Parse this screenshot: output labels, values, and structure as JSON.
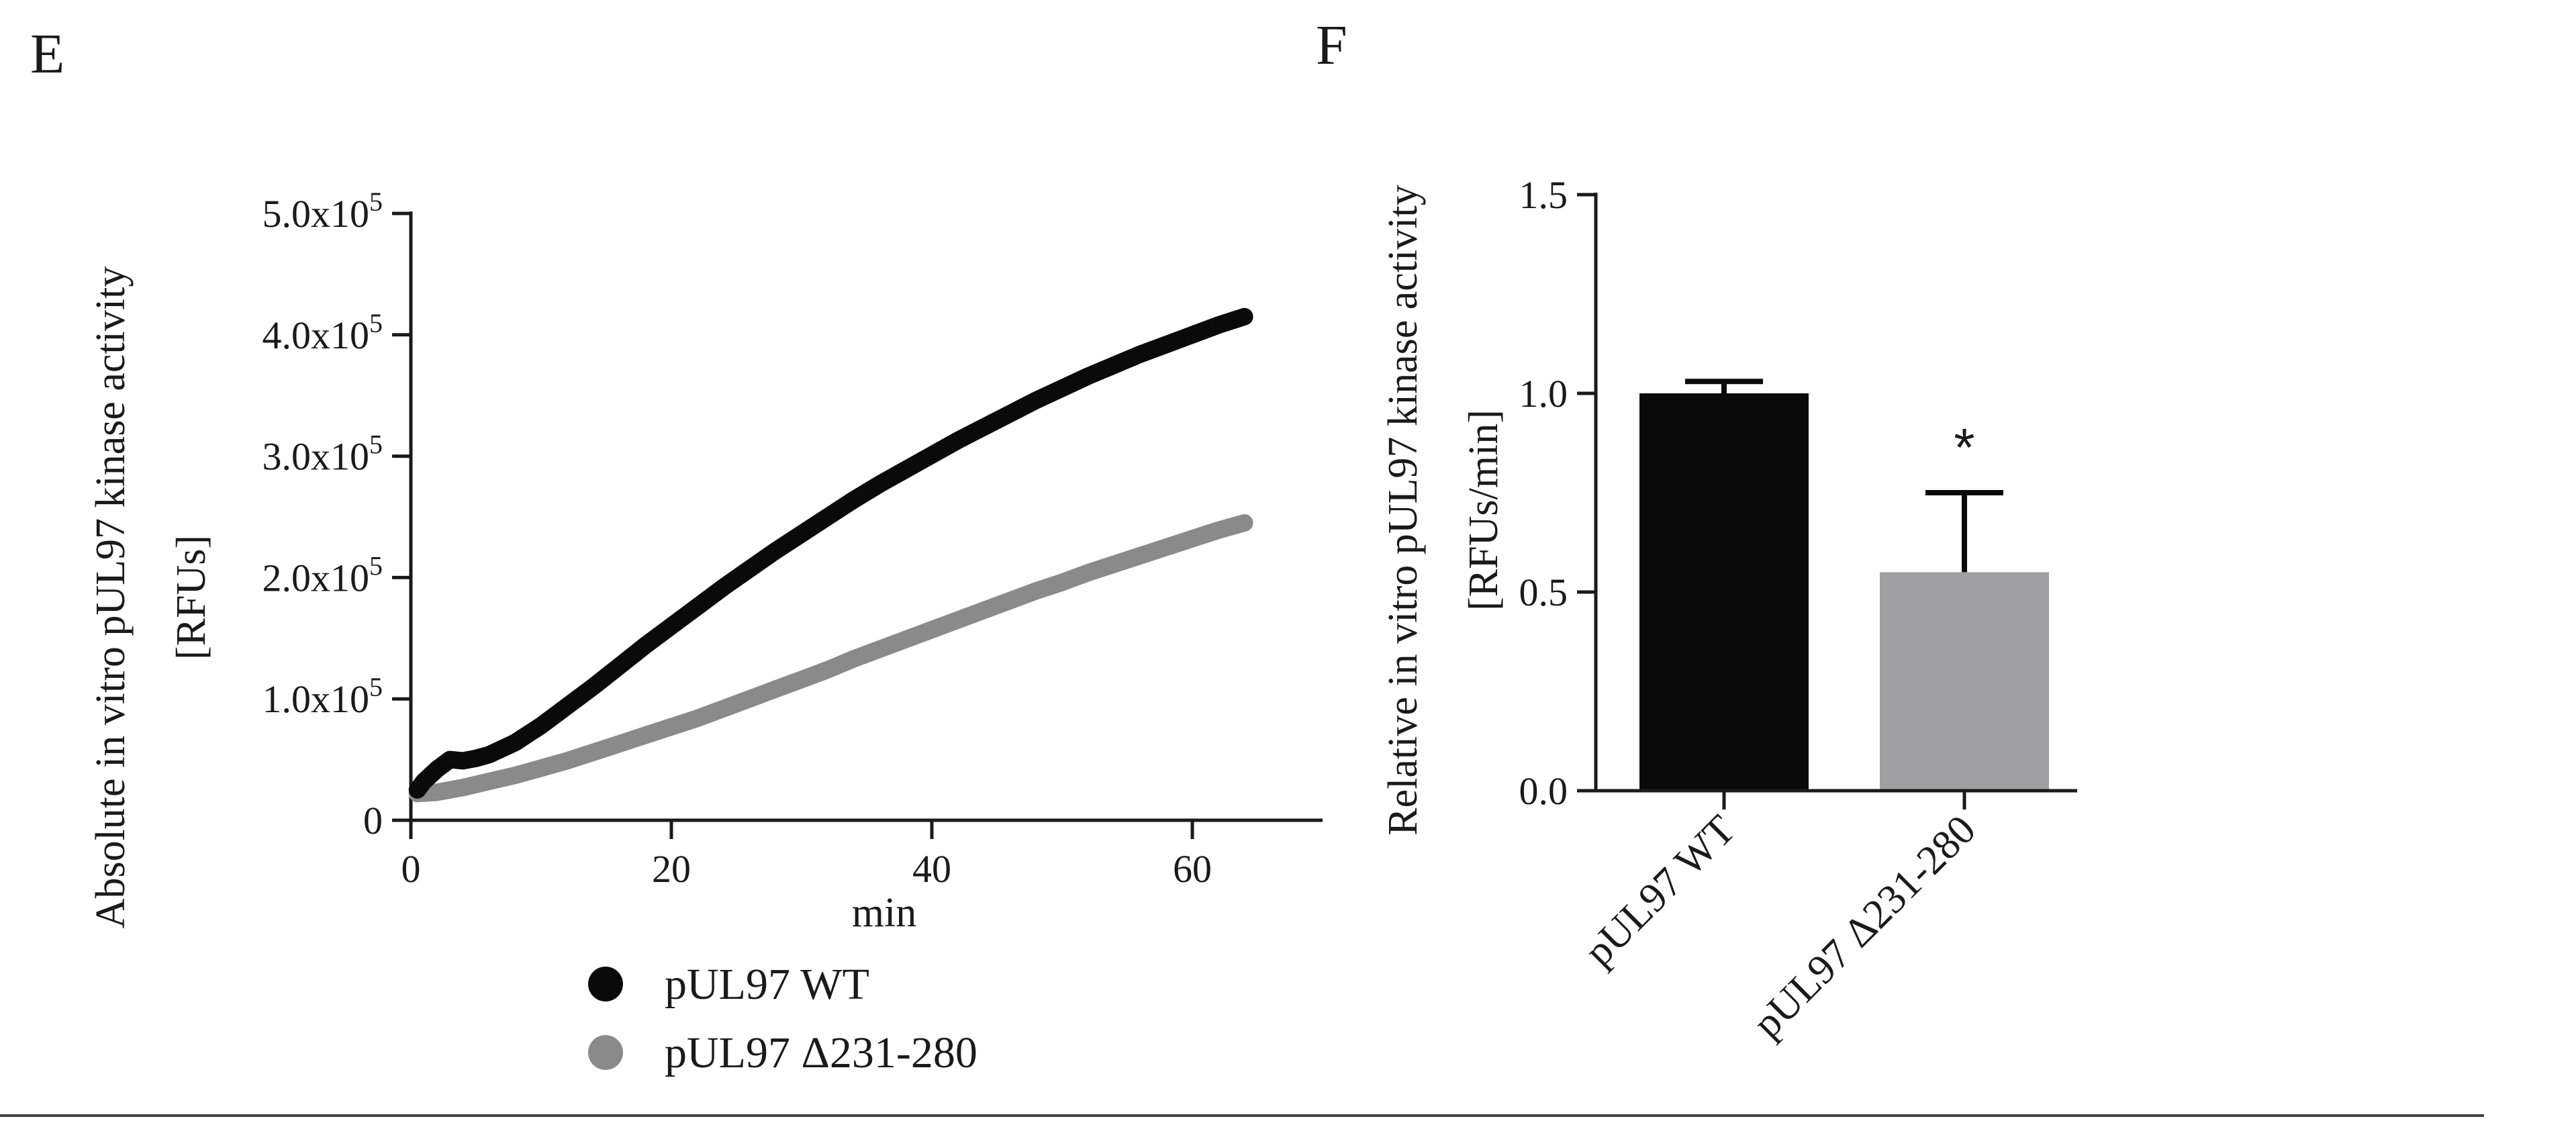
{
  "panels": [
    {
      "letter": "E",
      "chart_data": {
        "type": "line",
        "xlabel": "min",
        "ylabel_lines": [
          "Absolute in vitro pUL97 kinase activity",
          "[RFUs]"
        ],
        "xlim": [
          0,
          70
        ],
        "ylim": [
          0,
          500000
        ],
        "x_ticks": [
          0,
          20,
          40,
          60
        ],
        "x_tick_labels": [
          "0",
          "20",
          "40",
          "60"
        ],
        "y_ticks": [
          0,
          100000,
          200000,
          300000,
          400000,
          500000
        ],
        "y_tick_labels": [
          {
            "base": "0",
            "exp": ""
          },
          {
            "base": "1.0x10",
            "exp": "5"
          },
          {
            "base": "2.0x10",
            "exp": "5"
          },
          {
            "base": "3.0x10",
            "exp": "5"
          },
          {
            "base": "4.0x10",
            "exp": "5"
          },
          {
            "base": "5.0x10",
            "exp": "5"
          }
        ],
        "grid": false,
        "legend_position": "bottom",
        "series": [
          {
            "name": "pUL97 WT",
            "color": "#0a0a0a",
            "x": [
              0.5,
              1,
              2,
              3,
              4,
              5,
              6,
              8,
              10,
              12,
              14,
              16,
              18,
              20,
              22,
              24,
              26,
              28,
              30,
              32,
              34,
              36,
              38,
              40,
              42,
              44,
              46,
              48,
              50,
              52,
              54,
              56,
              58,
              60,
              62,
              64
            ],
            "y": [
              25000,
              32000,
              42000,
              50000,
              49000,
              51000,
              54000,
              64000,
              78000,
              94000,
              110000,
              127000,
              144000,
              160000,
              176000,
              192000,
              207000,
              222000,
              236000,
              250000,
              264000,
              277000,
              289000,
              301000,
              313000,
              324000,
              335000,
              346000,
              356000,
              366000,
              375000,
              384000,
              392000,
              400000,
              408000,
              415000
            ]
          },
          {
            "name": "pUL97 Δ231-280",
            "color": "#8a8a8a",
            "x": [
              0.5,
              2,
              4,
              6,
              8,
              10,
              12,
              14,
              16,
              18,
              20,
              22,
              24,
              26,
              28,
              30,
              32,
              34,
              36,
              38,
              40,
              42,
              44,
              46,
              48,
              50,
              52,
              54,
              56,
              58,
              60,
              62,
              64
            ],
            "y": [
              22000,
              23000,
              27000,
              32000,
              37000,
              43000,
              49000,
              56000,
              63000,
              70000,
              77000,
              84000,
              92000,
              100000,
              108000,
              116000,
              124000,
              133000,
              141000,
              149000,
              157000,
              165000,
              173000,
              181000,
              189000,
              196000,
              204000,
              211000,
              218000,
              225000,
              232000,
              239000,
              245000
            ]
          }
        ]
      }
    },
    {
      "letter": "F",
      "chart_data": {
        "type": "bar",
        "ylabel_lines": [
          "Relative in vitro pUL97 kinase activity",
          "[RFUs/min]"
        ],
        "ylim": [
          0,
          1.5
        ],
        "y_ticks": [
          0,
          0.5,
          1.0,
          1.5
        ],
        "y_tick_labels": [
          "0.0",
          "0.5",
          "1.0",
          "1.5"
        ],
        "categories": [
          "pUL97 WT",
          "pUL97 Δ231-280"
        ],
        "values": [
          1.0,
          0.55
        ],
        "errors": [
          0.03,
          0.2
        ],
        "colors": [
          "#0a0a0a",
          "#a0a0a2"
        ],
        "annotations": [
          {
            "category": "pUL97 Δ231-280",
            "text": "*"
          }
        ],
        "grid": false
      }
    }
  ]
}
